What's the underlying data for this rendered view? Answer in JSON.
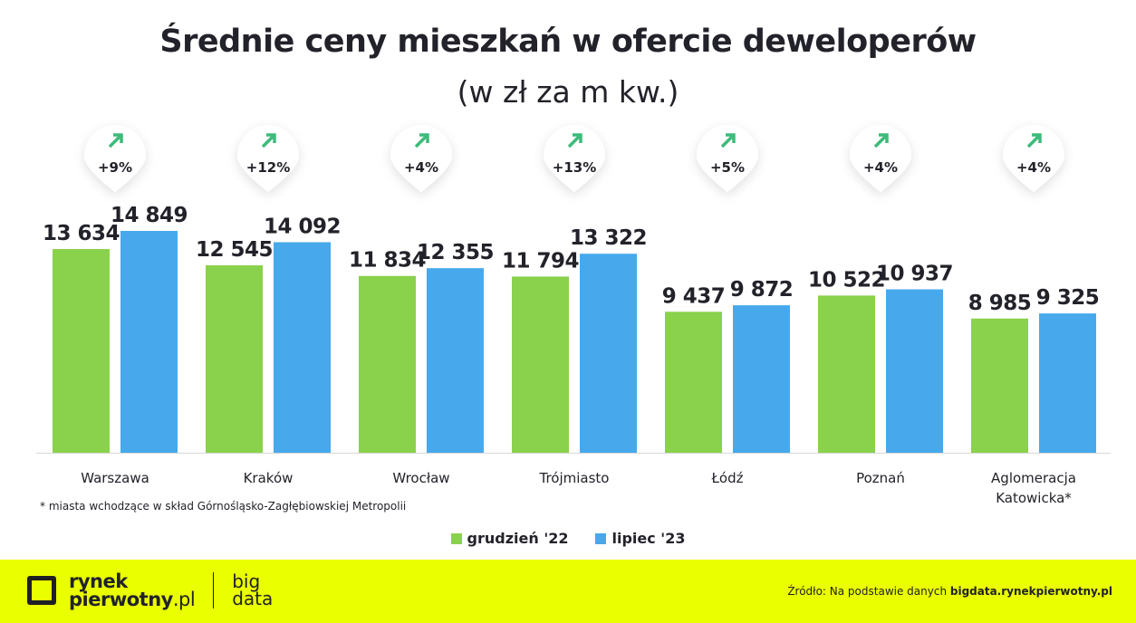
{
  "chart_data": {
    "type": "bar",
    "title": "Średnie ceny mieszkań w ofercie deweloperów",
    "subtitle": "(w zł za m kw.)",
    "categories": [
      "Warszawa",
      "Kraków",
      "Wrocław",
      "Trójmiasto",
      "Łódź",
      "Poznań",
      "Aglomeracja Katowicka*"
    ],
    "value_labels": [
      [
        "13 634",
        "14 849"
      ],
      [
        "12 545",
        "14 092"
      ],
      [
        "11 834",
        "12 355"
      ],
      [
        "11 794",
        "13 322"
      ],
      [
        "9 437",
        "9 872"
      ],
      [
        "10 522",
        "10 937"
      ],
      [
        "8 985",
        "9 325"
      ]
    ],
    "series": [
      {
        "name": "grudzień '22",
        "color": "#8ad14c",
        "values": [
          13634,
          12545,
          11834,
          11794,
          9437,
          10522,
          8985
        ]
      },
      {
        "name": "lipiec '23",
        "color": "#47a9ec",
        "values": [
          14849,
          14092,
          12355,
          13322,
          9872,
          10937,
          9325
        ]
      }
    ],
    "changes": [
      "+9%",
      "+12%",
      "+4%",
      "+13%",
      "+5%",
      "+4%",
      "+4%"
    ],
    "change_icon": "arrow-up-right-icon",
    "change_color": "#3dbb7a",
    "ylim": [
      0,
      15000
    ],
    "grid": false,
    "legend": "bottom"
  },
  "note": "* miasta wchodzące w skład Górnośląsko-Zagłębiowskiej Metropolii",
  "footer": {
    "logo_line1": "rynek",
    "logo_line2": "pierwotny",
    "logo_suffix": ".pl",
    "logo_big1": "big",
    "logo_big2": "data",
    "source_prefix": "Źródło: Na podstawie danych ",
    "source_link": "bigdata.rynekpierwotny.pl",
    "background": "#eaff00"
  }
}
